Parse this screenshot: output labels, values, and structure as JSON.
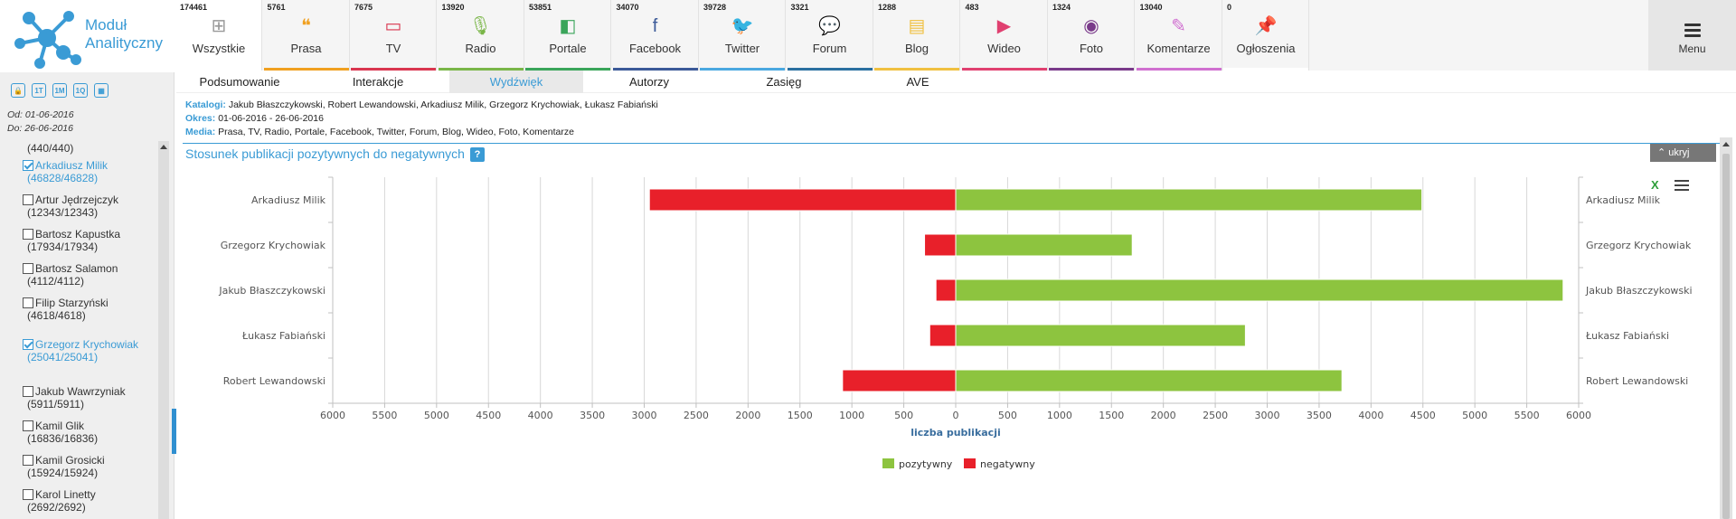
{
  "app": {
    "logo_line1": "Moduł",
    "logo_line2": "Analityczny"
  },
  "sidebar": {
    "icons": [
      "lock-icon",
      "11-icon",
      "1M-icon",
      "1Q-icon",
      "calendar-icon"
    ],
    "icon_texts": [
      "🔒",
      "1T",
      "1M",
      "1Q",
      "▦"
    ],
    "date_from": "Od: 01-06-2016",
    "date_to": "Do: 26-06-2016",
    "top_count": "(440/440)",
    "people": [
      {
        "name": "Arkadiusz Milik",
        "count": "(46828/46828)",
        "checked": true
      },
      {
        "name": "Artur Jędrzejczyk",
        "count": "(12343/12343)",
        "checked": false
      },
      {
        "name": "Bartosz Kapustka",
        "count": "(17934/17934)",
        "checked": false
      },
      {
        "name": "Bartosz Salamon",
        "count": "(4112/4112)",
        "checked": false
      },
      {
        "name": "Filip Starzyński",
        "count": "(4618/4618)",
        "checked": false
      },
      {
        "name": "Grzegorz Krychowiak",
        "count": "(25041/25041)",
        "checked": true
      },
      {
        "name": "Jakub Wawrzyniak",
        "count": "(5911/5911)",
        "checked": false
      },
      {
        "name": "Kamil Glik",
        "count": "(16836/16836)",
        "checked": false
      },
      {
        "name": "Kamil Grosicki",
        "count": "(15924/15924)",
        "checked": false
      },
      {
        "name": "Karol Linetty",
        "count": "(2692/2692)",
        "checked": false
      }
    ]
  },
  "media_tabs": [
    {
      "label": "Wszystkie",
      "count": "174461",
      "icon": "grid-icon",
      "glyph": "⊞",
      "color": "#999999",
      "bar": "#ffffff",
      "active": true
    },
    {
      "label": "Prasa",
      "count": "5761",
      "icon": "quote-icon",
      "glyph": "❝",
      "color": "#f0a020",
      "bar": "#f0a020"
    },
    {
      "label": "TV",
      "count": "7675",
      "icon": "tv-icon",
      "glyph": "▭",
      "color": "#d9364f",
      "bar": "#d9364f"
    },
    {
      "label": "Radio",
      "count": "13920",
      "icon": "microphone-icon",
      "glyph": "🎙",
      "color": "#7ab648",
      "bar": "#7ab648"
    },
    {
      "label": "Portale",
      "count": "53851",
      "icon": "cube-icon",
      "glyph": "◧",
      "color": "#3aa55a",
      "bar": "#3aa55a"
    },
    {
      "label": "Facebook",
      "count": "34070",
      "icon": "facebook-icon",
      "glyph": "f",
      "color": "#3b5998",
      "bar": "#3b5998"
    },
    {
      "label": "Twitter",
      "count": "39728",
      "icon": "twitter-icon",
      "glyph": "🐦",
      "color": "#4aa8e0",
      "bar": "#4aa8e0"
    },
    {
      "label": "Forum",
      "count": "3321",
      "icon": "chat-icon",
      "glyph": "💬",
      "color": "#2a6fa0",
      "bar": "#2a6fa0"
    },
    {
      "label": "Blog",
      "count": "1288",
      "icon": "speech-icon",
      "glyph": "▤",
      "color": "#f0c040",
      "bar": "#f0c040"
    },
    {
      "label": "Wideo",
      "count": "483",
      "icon": "play-icon",
      "glyph": "▶",
      "color": "#e04070",
      "bar": "#e04070"
    },
    {
      "label": "Foto",
      "count": "1324",
      "icon": "camera-icon",
      "glyph": "◉",
      "color": "#7a3a8a",
      "bar": "#7a3a8a"
    },
    {
      "label": "Komentarze",
      "count": "13040",
      "icon": "pencil-icon",
      "glyph": "✎",
      "color": "#d070d0",
      "bar": "#d070d0"
    },
    {
      "label": "Ogłoszenia",
      "count": "0",
      "icon": "pin-icon",
      "glyph": "📌",
      "color": "#bbbbbb",
      "bar": "#ffffff"
    }
  ],
  "menu": {
    "label": "Menu"
  },
  "subtabs": [
    "Podsumowanie",
    "Interakcje",
    "Wydźwięk",
    "Autorzy",
    "Zasięg",
    "AVE"
  ],
  "active_subtab": "Wydźwięk",
  "info": {
    "catalogs_key": "Katalogi:",
    "catalogs": " Jakub Błaszczykowski, Robert Lewandowski, Arkadiusz Milik, Grzegorz Krychowiak, Łukasz Fabiański",
    "period_key": "Okres:",
    "period": " 01-06-2016 - 26-06-2016",
    "media_key": "Media:",
    "media": " Prasa, TV, Radio, Portale, Facebook, Twitter, Forum, Blog, Wideo, Foto, Komentarze"
  },
  "panel": {
    "title": "Stosunek publikacji pozytywnych do negatywnych",
    "help": "?",
    "hide": "ukryj"
  },
  "chart_data": {
    "type": "bar",
    "orientation": "horizontal",
    "stacked": true,
    "categories": [
      "Arkadiusz Milik",
      "Grzegorz Krychowiak",
      "Jakub Błaszczykowski",
      "Łukasz Fabiański",
      "Robert Lewandowski"
    ],
    "series": [
      {
        "name": "pozytywny",
        "color": "#8dc43f",
        "values": [
          4490,
          1700,
          5850,
          2790,
          3720
        ]
      },
      {
        "name": "negatywny",
        "color": "#e8202a",
        "values": [
          -2950,
          -300,
          -190,
          -250,
          -1090
        ]
      }
    ],
    "xlabel": "liczba publikacji",
    "xlim": [
      -6000,
      6000
    ],
    "xticks": [
      -6000,
      -5500,
      -5000,
      -4500,
      -4000,
      -3500,
      -3000,
      -2500,
      -2000,
      -1500,
      -1000,
      -500,
      0,
      500,
      1000,
      1500,
      2000,
      2500,
      3000,
      3500,
      4000,
      4500,
      5000,
      5500,
      6000
    ],
    "xtick_labels": [
      "6000",
      "5500",
      "5000",
      "4500",
      "4000",
      "3500",
      "3000",
      "2500",
      "2000",
      "1500",
      "1000",
      "500",
      "0",
      "500",
      "1000",
      "1500",
      "2000",
      "2500",
      "3000",
      "3500",
      "4000",
      "4500",
      "5000",
      "5500",
      "6000"
    ],
    "grid": true,
    "legend": "bottom-center",
    "category_labels_both_sides": true
  }
}
